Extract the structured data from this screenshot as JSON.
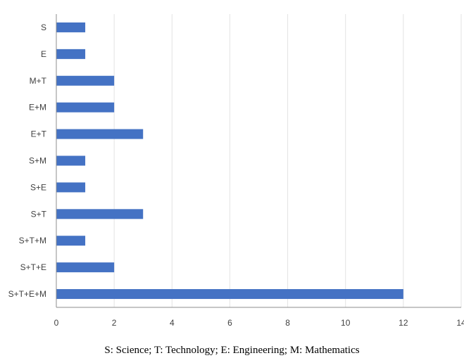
{
  "chart_data": {
    "type": "bar",
    "orientation": "horizontal",
    "categories": [
      "S",
      "E",
      "M+T",
      "E+M",
      "E+T",
      "S+M",
      "S+E",
      "S+T",
      "S+T+M",
      "S+T+E",
      "S+T+E+M"
    ],
    "values": [
      1,
      1,
      2,
      2,
      3,
      1,
      1,
      3,
      1,
      2,
      12
    ],
    "xlim": [
      0,
      14
    ],
    "xticks": [
      0,
      2,
      4,
      6,
      8,
      10,
      12,
      14
    ],
    "grid": true,
    "bar_color": "#4472c4"
  },
  "caption": "S: Science; T: Technology; E: Engineering; M: Mathematics"
}
